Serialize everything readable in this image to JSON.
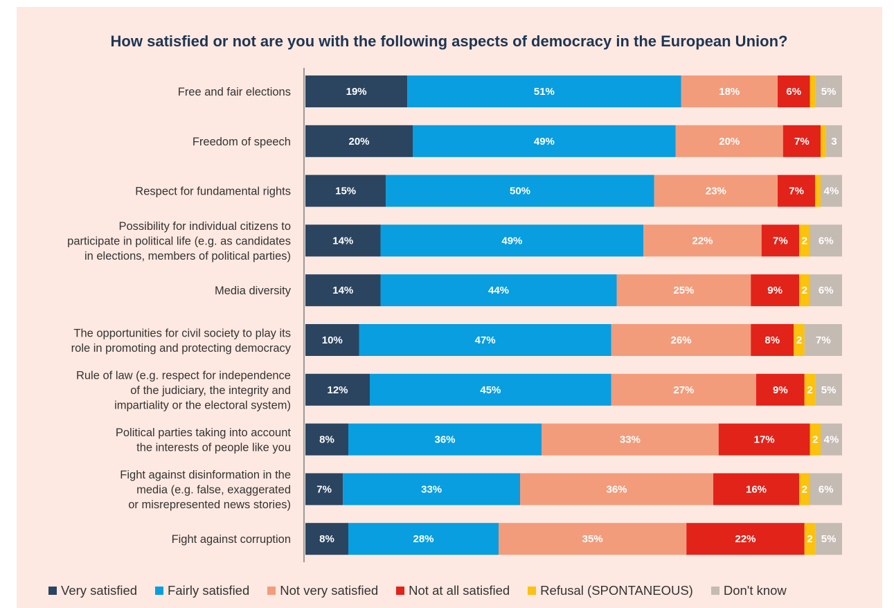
{
  "colors": {
    "background": "#fde9e1",
    "title": "#1e3553",
    "very_satisfied": "#2b4560",
    "fairly_satisfied": "#089ee0",
    "not_very_satisfied": "#f29c7c",
    "not_at_all_satisfied": "#e2231a",
    "refusal": "#fbc20e",
    "dont_know": "#c4bbb3"
  },
  "chart_data": {
    "type": "bar",
    "orientation": "horizontal",
    "stacked": true,
    "title": "How satisfied or not are you with the following aspects of democracy in the European Union?",
    "legend_position": "bottom",
    "categories": [
      [
        "Free and fair elections"
      ],
      [
        "Freedom of speech"
      ],
      [
        "Respect for fundamental rights"
      ],
      [
        "Possibility for individual citizens to",
        "participate in political life (e.g. as candidates",
        "in elections, members of political parties)"
      ],
      [
        "Media diversity"
      ],
      [
        "The opportunities for civil society to play its",
        "role in promoting and protecting democracy"
      ],
      [
        "Rule of law (e.g. respect for independence",
        "of the judiciary, the integrity and",
        "impartiality or the electoral system)"
      ],
      [
        "Political parties taking into account",
        "the interests of people like you"
      ],
      [
        "Fight against disinformation in the",
        "media (e.g. false, exaggerated",
        "or misrepresented news stories)"
      ],
      [
        "Fight against corruption"
      ]
    ],
    "series": [
      {
        "name": "Very satisfied",
        "values": [
          19,
          20,
          15,
          14,
          14,
          10,
          12,
          8,
          7,
          8
        ],
        "labels": [
          "19%",
          "20%",
          "15%",
          "14%",
          "14%",
          "10%",
          "12%",
          "8%",
          "7%",
          "8%"
        ]
      },
      {
        "name": "Fairly satisfied",
        "values": [
          51,
          49,
          50,
          49,
          44,
          47,
          45,
          36,
          33,
          28
        ],
        "labels": [
          "51%",
          "49%",
          "50%",
          "49%",
          "44%",
          "47%",
          "45%",
          "36%",
          "33%",
          "28%"
        ]
      },
      {
        "name": "Not very satisfied",
        "values": [
          18,
          20,
          23,
          22,
          25,
          26,
          27,
          33,
          36,
          35
        ],
        "labels": [
          "18%",
          "20%",
          "23%",
          "22%",
          "25%",
          "26%",
          "27%",
          "33%",
          "36%",
          "35%"
        ]
      },
      {
        "name": "Not at all satisfied",
        "values": [
          6,
          7,
          7,
          7,
          9,
          8,
          9,
          17,
          16,
          22
        ],
        "labels": [
          "6%",
          "7%",
          "7%",
          "7%",
          "9%",
          "8%",
          "9%",
          "17%",
          "16%",
          "22%"
        ]
      },
      {
        "name": "Refusal (SPONTANEOUS)",
        "values": [
          1,
          1,
          1,
          2,
          2,
          2,
          2,
          2,
          2,
          2
        ],
        "labels": [
          "",
          "",
          "",
          "2",
          "2",
          "2",
          "2",
          "2",
          "2",
          "2"
        ]
      },
      {
        "name": "Don't know",
        "values": [
          5,
          3,
          4,
          6,
          6,
          7,
          5,
          4,
          6,
          5
        ],
        "labels": [
          "5%",
          "3",
          "4%",
          "6%",
          "6%",
          "7%",
          "5%",
          "4%",
          "6%",
          "5%"
        ]
      }
    ]
  },
  "legend": {
    "items": [
      {
        "label": "Very satisfied",
        "color": "#2b4560"
      },
      {
        "label": "Fairly satisfied",
        "color": "#089ee0"
      },
      {
        "label": "Not very satisfied",
        "color": "#f29c7c"
      },
      {
        "label": "Not at all satisfied",
        "color": "#e2231a"
      },
      {
        "label": "Refusal (SPONTANEOUS)",
        "color": "#fbc20e"
      },
      {
        "label": "Don't know",
        "color": "#c4bbb3"
      }
    ]
  }
}
